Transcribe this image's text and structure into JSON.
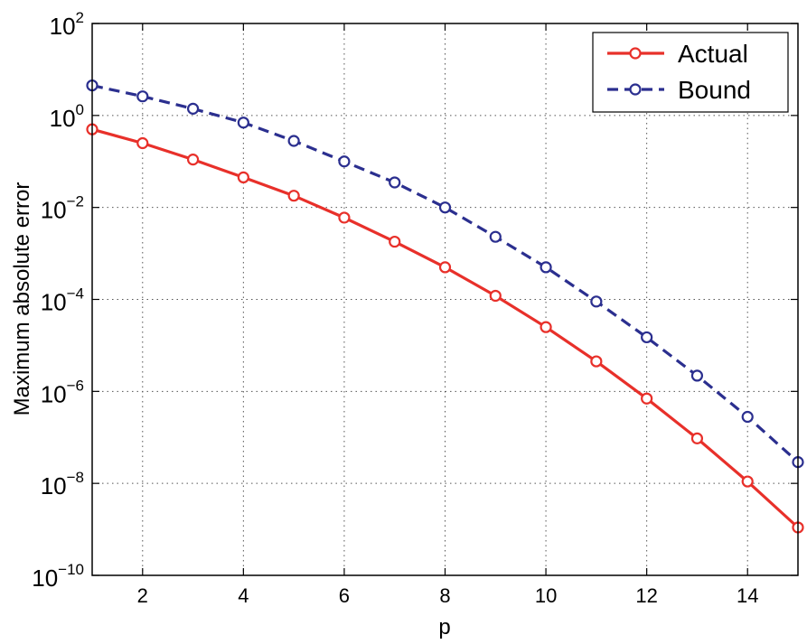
{
  "chart_data": {
    "type": "line",
    "title": "",
    "xlabel": "p",
    "ylabel": "Maximum absolute error",
    "xlim": [
      1,
      15
    ],
    "ylim": [
      1e-10,
      100
    ],
    "yscale": "log",
    "grid": true,
    "legend_position": "top-right",
    "x_ticks": [
      2,
      4,
      6,
      8,
      10,
      12,
      14
    ],
    "x_tick_labels": [
      "2",
      "4",
      "6",
      "8",
      "10",
      "12",
      "14"
    ],
    "y_ticks": [
      {
        "value": 100,
        "base": "10",
        "exp": "2"
      },
      {
        "value": 1,
        "base": "10",
        "exp": "0"
      },
      {
        "value": 0.01,
        "base": "10",
        "exp": "−2"
      },
      {
        "value": 0.0001,
        "base": "10",
        "exp": "−4"
      },
      {
        "value": 1e-06,
        "base": "10",
        "exp": "−6"
      },
      {
        "value": 1e-08,
        "base": "10",
        "exp": "−8"
      },
      {
        "value": 1e-10,
        "base": "10",
        "exp": "−10"
      }
    ],
    "x": [
      1,
      2,
      3,
      4,
      5,
      6,
      7,
      8,
      9,
      10,
      11,
      12,
      13,
      14,
      15
    ],
    "series": [
      {
        "name": "Actual",
        "color": "#e8302a",
        "line_style": "solid",
        "marker": "circle",
        "values": [
          0.5,
          0.25,
          0.11,
          0.045,
          0.018,
          0.006,
          0.0018,
          0.0005,
          0.00012,
          2.5e-05,
          4.5e-06,
          7e-07,
          9.5e-08,
          1.1e-08,
          1.1e-09
        ]
      },
      {
        "name": "Bound",
        "color": "#2b2f8f",
        "line_style": "dashed",
        "marker": "circle",
        "values": [
          4.5,
          2.6,
          1.4,
          0.7,
          0.28,
          0.1,
          0.035,
          0.01,
          0.0023,
          0.0005,
          9e-05,
          1.5e-05,
          2.2e-06,
          2.8e-07,
          2.9e-08
        ]
      }
    ]
  }
}
